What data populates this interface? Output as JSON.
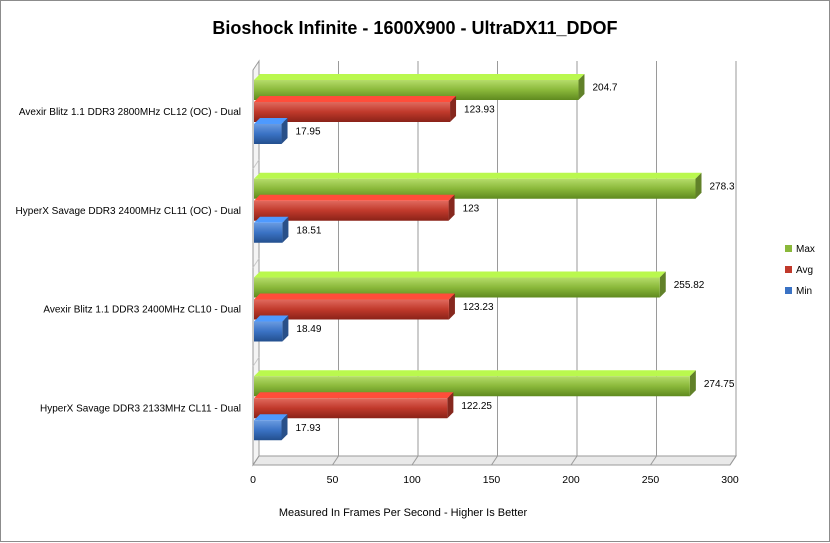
{
  "chart_data": {
    "type": "bar",
    "orientation": "horizontal",
    "title": "Bioshock Infinite - 1600X900 - UltraDX11_DDOF",
    "xlabel": "Measured In Frames Per Second - Higher Is Better",
    "ylabel": "",
    "xlim": [
      0,
      300
    ],
    "x_ticks": [
      "0",
      "50",
      "100",
      "150",
      "200",
      "250",
      "300"
    ],
    "grid": true,
    "legend_position": "right",
    "categories": [
      "Avexir Blitz 1.1 DDR3 2800MHz CL12 (OC) - Dual",
      "HyperX Savage DDR3  2400MHz CL11 (OC) - Dual",
      "Avexir Blitz 1.1 DDR3 2400MHz CL10 - Dual",
      "HyperX Savage DDR3  2133MHz CL11 - Dual"
    ],
    "series": [
      {
        "name": "Max",
        "color": "#8ab83a",
        "values": [
          204.7,
          278.3,
          255.82,
          274.75
        ],
        "labels": [
          "204.7",
          "278.3",
          "255.82",
          "274.75"
        ]
      },
      {
        "name": "Avg",
        "color": "#c0392b",
        "values": [
          123.93,
          123,
          123.23,
          122.25
        ],
        "labels": [
          "123.93",
          "123",
          "123.23",
          "122.25"
        ]
      },
      {
        "name": "Min",
        "color": "#3a72c4",
        "values": [
          17.95,
          18.51,
          18.49,
          17.93
        ],
        "labels": [
          "17.95",
          "18.51",
          "18.49",
          "17.93"
        ]
      }
    ]
  }
}
